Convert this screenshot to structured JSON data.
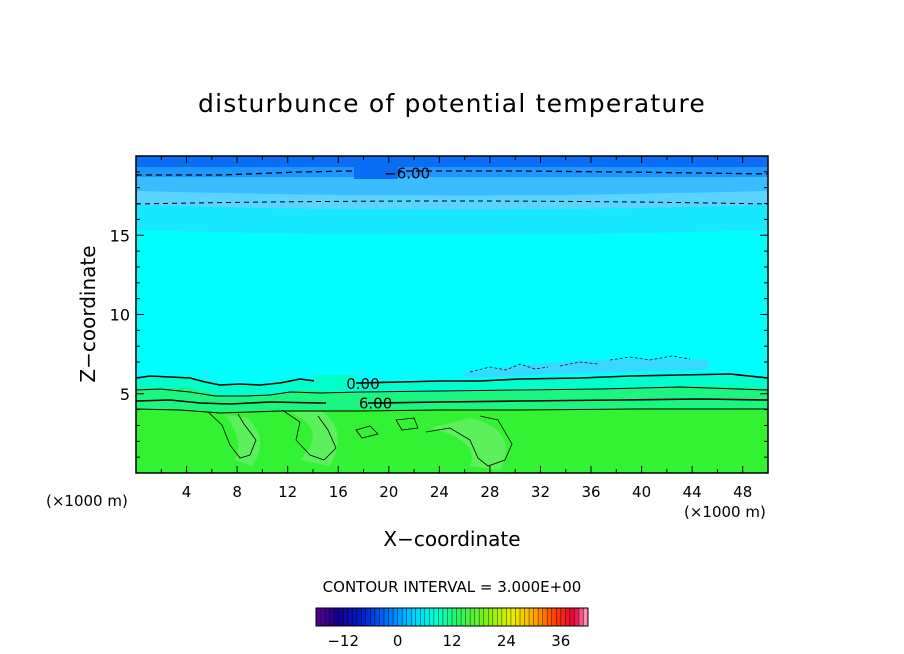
{
  "chart_data": {
    "type": "heatmap",
    "title": "disturbunce of potential temperature",
    "xlabel": "X−coordinate",
    "ylabel": "Z−coordinate",
    "x_unit": "(×1000 m)",
    "xlim": [
      0,
      50
    ],
    "ylim": [
      0,
      20
    ],
    "x_ticks": [
      4,
      8,
      12,
      16,
      20,
      24,
      28,
      32,
      36,
      40,
      44,
      48
    ],
    "y_ticks": [
      5,
      10,
      15
    ],
    "contour_interval_text": "CONTOUR INTERVAL = 3.000E+00",
    "contour_labels": [
      {
        "text": "−6.00",
        "x": 19,
        "z": 18.9
      },
      {
        "text": "0.00",
        "x": 16,
        "z": 5.6
      },
      {
        "text": "6.00",
        "x": 17,
        "z": 4.4
      }
    ],
    "colorbar": {
      "range": [
        -18,
        42
      ],
      "ticks": [
        -12,
        0,
        12,
        24,
        36
      ]
    },
    "colors": {
      "top_blue": "#0a6ef5",
      "mid_blue": "#1e96ff",
      "light_blue": "#3cbcff",
      "cyan": "#00ffff",
      "aqua_band": "#00ffcc",
      "green_band": "#1cf582",
      "green": "#33f233",
      "light_green": "#60f060"
    }
  }
}
